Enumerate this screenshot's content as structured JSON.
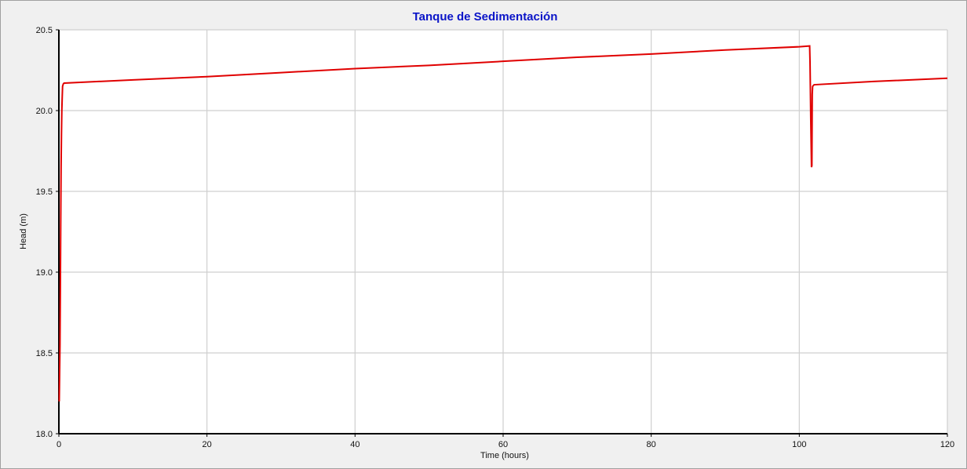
{
  "chart_data": {
    "type": "line",
    "title": "Tanque de Sedimentación",
    "xlabel": "Time (hours)",
    "ylabel": "Head (m)",
    "xlim": [
      0,
      120
    ],
    "ylim": [
      18.0,
      20.5
    ],
    "xticks": [
      0,
      20,
      40,
      60,
      80,
      100,
      120
    ],
    "yticks": [
      18.0,
      18.5,
      19.0,
      19.5,
      20.0,
      20.5
    ],
    "xtick_labels": [
      "0",
      "20",
      "40",
      "60",
      "80",
      "100",
      "120"
    ],
    "ytick_labels": [
      "18.0",
      "18.5",
      "19.0",
      "19.5",
      "20.0",
      "20.5"
    ],
    "grid": true,
    "series": [
      {
        "color": "#e00000",
        "x": [
          0.05,
          0.15,
          0.2,
          0.25,
          0.3,
          0.35,
          0.4,
          0.45,
          0.5,
          0.6,
          0.7,
          10,
          20,
          30,
          40,
          50,
          60,
          70,
          80,
          90,
          100,
          101.4,
          101.45,
          101.55,
          101.6,
          101.65,
          101.7,
          101.75,
          101.8,
          102.0,
          110,
          120
        ],
        "values": [
          18.2,
          18.55,
          18.9,
          19.3,
          19.65,
          19.85,
          20.0,
          20.08,
          20.15,
          20.165,
          20.17,
          20.19,
          20.21,
          20.235,
          20.26,
          20.28,
          20.305,
          20.33,
          20.35,
          20.375,
          20.395,
          20.4,
          20.3,
          19.95,
          19.8,
          19.65,
          19.66,
          20.1,
          20.15,
          20.16,
          20.18,
          20.2
        ]
      }
    ]
  }
}
